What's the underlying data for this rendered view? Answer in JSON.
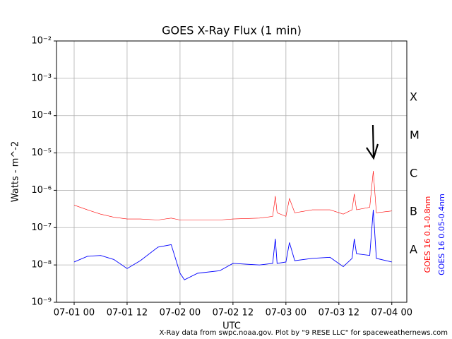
{
  "chart_data": {
    "type": "line",
    "title": "GOES X-Ray Flux (1 min)",
    "x_label": "UTC",
    "y_label": "Watts - m^-2",
    "footnote": "X-Ray data from swpc.noaa.gov. Plot by \"9 RESE LLC\" for spaceweathernews.com",
    "class_labels": [
      "X",
      "M",
      "C",
      "B",
      "A"
    ],
    "yscale": "log",
    "grid": true,
    "xlim": [
      -4,
      75.4
    ],
    "xticks": [
      {
        "value": 0,
        "label": "07-01 00"
      },
      {
        "value": 12,
        "label": "07-01 12"
      },
      {
        "value": 24,
        "label": "07-02 00"
      },
      {
        "value": 36,
        "label": "07-02 12"
      },
      {
        "value": 48,
        "label": "07-03 00"
      },
      {
        "value": 60,
        "label": "07-03 12"
      },
      {
        "value": 72,
        "label": "07-04 00"
      }
    ],
    "ylim": [
      1e-09,
      0.01
    ],
    "yticks": [
      {
        "value": 1e-09,
        "label": "10⁻⁹"
      },
      {
        "value": 1e-08,
        "label": "10⁻⁸"
      },
      {
        "value": 1e-07,
        "label": "10⁻⁷"
      },
      {
        "value": 1e-06,
        "label": "10⁻⁶"
      },
      {
        "value": 1e-05,
        "label": "10⁻⁵"
      },
      {
        "value": 0.0001,
        "label": "10⁻⁴"
      },
      {
        "value": 0.001,
        "label": "10⁻³"
      },
      {
        "value": 0.01,
        "label": "10⁻²"
      }
    ],
    "x": [
      0,
      3,
      6,
      9,
      12,
      15,
      19,
      22,
      24,
      25,
      28,
      33,
      36,
      42,
      45,
      45.6,
      46,
      48,
      48.8,
      50,
      54,
      58,
      61,
      63,
      63.5,
      64,
      67,
      67.8,
      68.5,
      72
    ],
    "series": [
      {
        "name": "GOES 16 0.1-0.8nm",
        "color": "#ff0000",
        "values": [
          4e-07,
          3e-07,
          2.3e-07,
          1.9e-07,
          1.7e-07,
          1.7e-07,
          1.6e-07,
          1.8e-07,
          1.6e-07,
          1.6e-07,
          1.6e-07,
          1.6e-07,
          1.7e-07,
          1.8e-07,
          2e-07,
          7e-07,
          2.5e-07,
          2e-07,
          6e-07,
          2.5e-07,
          3e-07,
          3e-07,
          2.3e-07,
          3e-07,
          8e-07,
          3e-07,
          3.5e-07,
          3.3e-06,
          2.5e-07,
          2.8e-07
        ]
      },
      {
        "name": "GOES 16 0.05-0.4nm",
        "color": "#0000ff",
        "values": [
          1.2e-08,
          1.7e-08,
          1.8e-08,
          1.4e-08,
          8e-09,
          1.3e-08,
          3e-08,
          3.5e-08,
          6e-09,
          4e-09,
          6e-09,
          7e-09,
          1.1e-08,
          1e-08,
          1.1e-08,
          5e-08,
          1.1e-08,
          1.2e-08,
          4e-08,
          1.3e-08,
          1.5e-08,
          1.6e-08,
          9e-09,
          1.5e-08,
          5e-08,
          2e-08,
          1.8e-08,
          3e-07,
          1.5e-08,
          1.2e-08
        ]
      }
    ]
  }
}
